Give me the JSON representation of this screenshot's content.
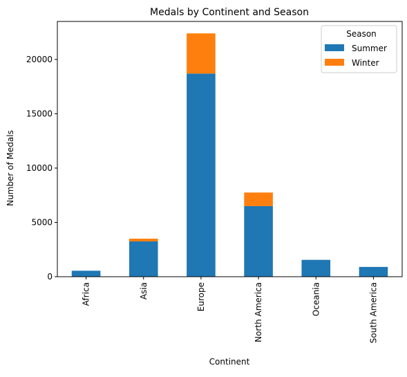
{
  "chart_data": {
    "type": "bar",
    "stacked": true,
    "title": "Medals by Continent and Season",
    "xlabel": "Continent",
    "ylabel": "Number of Medals",
    "categories": [
      "Africa",
      "Asia",
      "Europe",
      "North America",
      "Oceania",
      "South America"
    ],
    "series": [
      {
        "name": "Summer",
        "color": "#1f77b4",
        "values": [
          550,
          3250,
          18700,
          6500,
          1550,
          900
        ]
      },
      {
        "name": "Winter",
        "color": "#ff7f0e",
        "values": [
          0,
          250,
          3700,
          1250,
          0,
          0
        ]
      }
    ],
    "ylim": [
      0,
      23500
    ],
    "yticks": [
      0,
      5000,
      10000,
      15000,
      20000
    ],
    "ytick_labels": [
      "0",
      "5000",
      "10000",
      "15000",
      "20000"
    ],
    "legend": {
      "title": "Season",
      "position": "top-right"
    },
    "grid": false
  }
}
